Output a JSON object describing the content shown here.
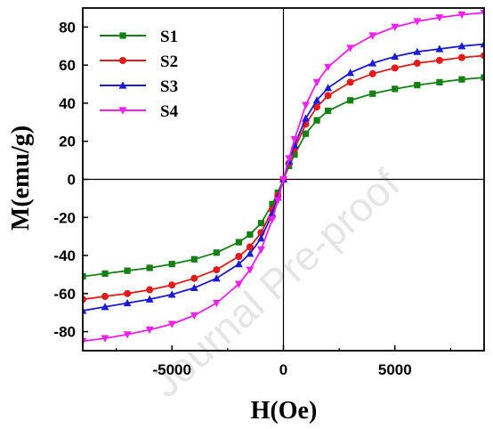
{
  "chart_data": {
    "type": "line",
    "title": "",
    "xlabel": "H(Oe)",
    "ylabel": "M(emu/g)",
    "xlim": [
      -9000,
      9000
    ],
    "ylim": [
      -90,
      90
    ],
    "xticks": [
      -5000,
      0,
      5000
    ],
    "yticks": [
      -80,
      -60,
      -40,
      -20,
      0,
      20,
      40,
      60,
      80
    ],
    "grid": false,
    "legend_position": "top-left",
    "watermark": "Journal Pre-proof",
    "series": [
      {
        "name": "S1",
        "color": "#138013",
        "marker": "square",
        "x": [
          -9000,
          -8000,
          -7000,
          -6000,
          -5000,
          -4000,
          -3000,
          -2000,
          -1500,
          -1000,
          -500,
          -250,
          0,
          250,
          500,
          1000,
          1500,
          2000,
          3000,
          4000,
          5000,
          6000,
          7000,
          8000,
          9000
        ],
        "y": [
          -51,
          -49.5,
          -48,
          -46.5,
          -44.5,
          -42,
          -38.5,
          -33,
          -29,
          -23,
          -13,
          -7,
          0,
          7,
          13,
          24,
          31,
          36,
          41.5,
          45,
          47.5,
          49.5,
          51,
          52.5,
          53.5
        ]
      },
      {
        "name": "S2",
        "color": "#e31a1a",
        "marker": "circle",
        "x": [
          -9000,
          -8000,
          -7000,
          -6000,
          -5000,
          -4000,
          -3000,
          -2000,
          -1500,
          -1000,
          -500,
          -250,
          0,
          250,
          500,
          1000,
          1500,
          2000,
          3000,
          4000,
          5000,
          6000,
          7000,
          8000,
          9000
        ],
        "y": [
          -63,
          -61.5,
          -60,
          -58,
          -55.5,
          -52,
          -47.5,
          -40.5,
          -35.5,
          -28,
          -16,
          -8.5,
          0,
          8.5,
          16,
          29,
          38,
          44,
          51,
          55.5,
          58.5,
          61,
          62.5,
          64,
          65
        ]
      },
      {
        "name": "S3",
        "color": "#1a1ad6",
        "marker": "triangle-up",
        "x": [
          -9000,
          -8000,
          -7000,
          -6000,
          -5000,
          -4000,
          -3000,
          -2000,
          -1500,
          -1000,
          -500,
          -250,
          0,
          250,
          500,
          1000,
          1500,
          2000,
          3000,
          4000,
          5000,
          6000,
          7000,
          8000,
          9000
        ],
        "y": [
          -69,
          -67,
          -65,
          -63,
          -60.5,
          -57,
          -52,
          -44.5,
          -39,
          -31,
          -18,
          -9.5,
          0,
          9.5,
          18,
          32,
          41.5,
          48,
          56,
          61,
          64.5,
          67,
          68.5,
          70,
          71
        ]
      },
      {
        "name": "S4",
        "color": "#f21ef2",
        "marker": "triangle-down",
        "x": [
          -9000,
          -8000,
          -7000,
          -6000,
          -5000,
          -4000,
          -3000,
          -2000,
          -1500,
          -1000,
          -500,
          -250,
          0,
          250,
          500,
          1000,
          1500,
          2000,
          3000,
          4000,
          5000,
          6000,
          7000,
          8000,
          9000
        ],
        "y": [
          -85,
          -83.5,
          -81.5,
          -79,
          -76,
          -71.5,
          -65,
          -55,
          -47.5,
          -37,
          -21,
          -11,
          0,
          11,
          21,
          39,
          51,
          59,
          69,
          75.5,
          80,
          83,
          85,
          86.5,
          87.5
        ]
      }
    ]
  }
}
